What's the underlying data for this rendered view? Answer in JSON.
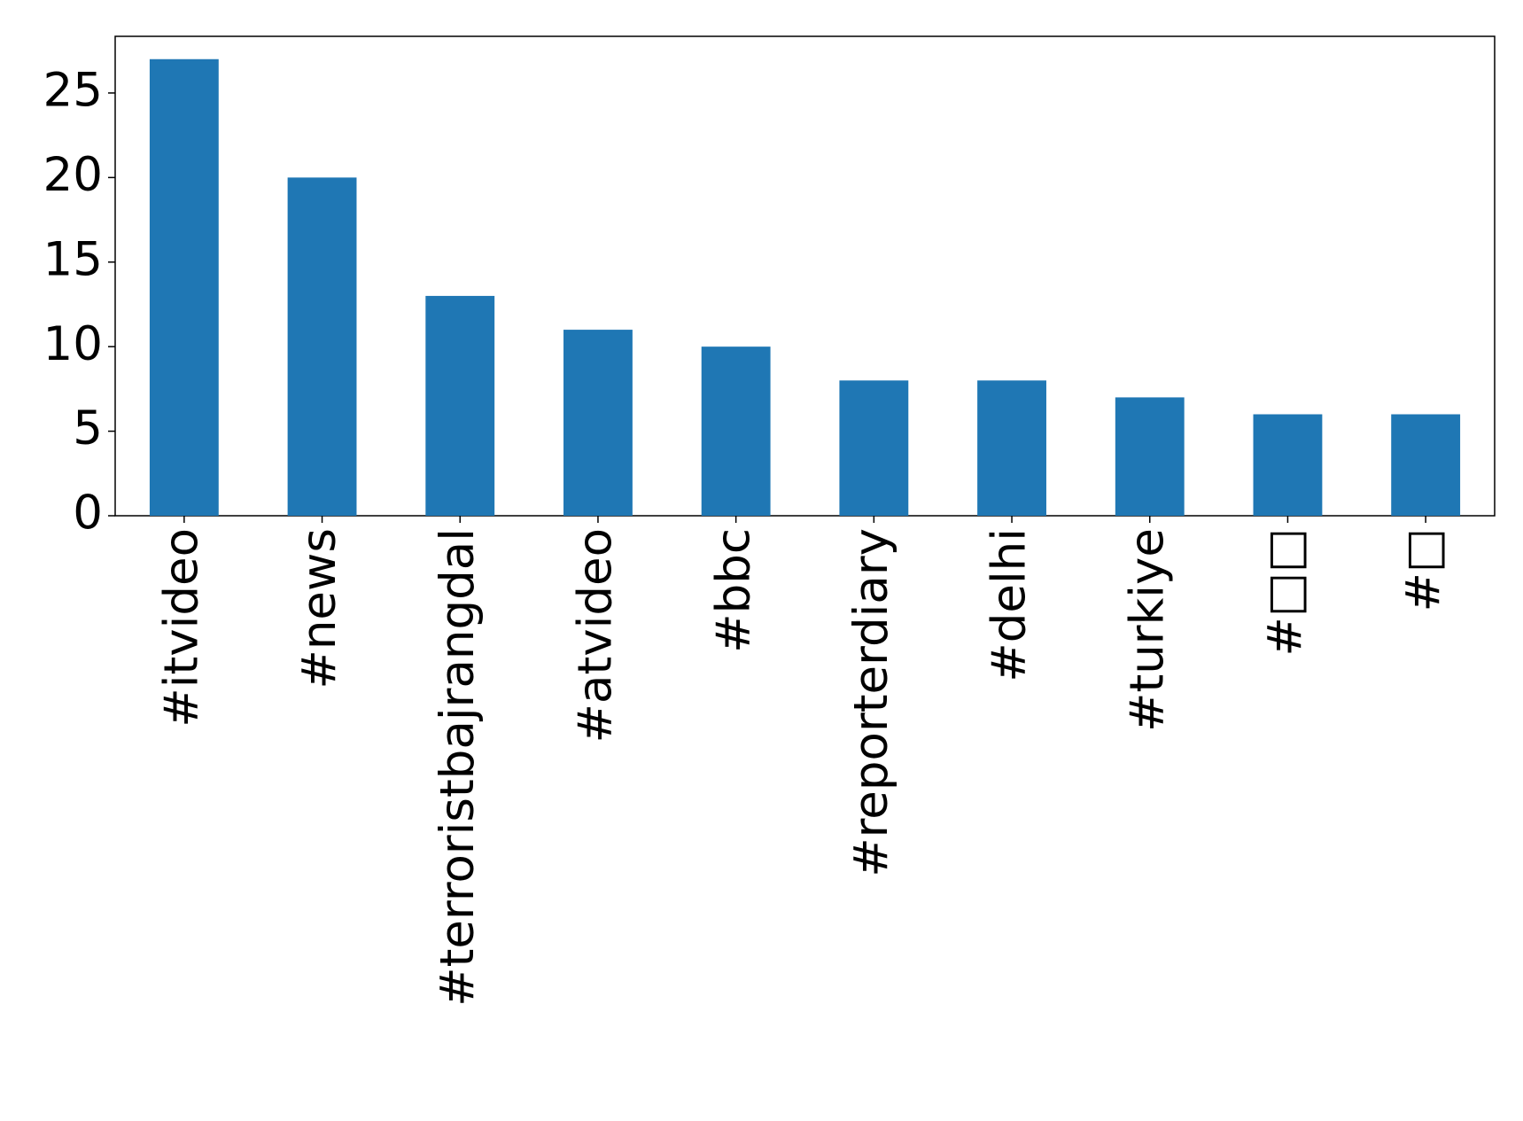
{
  "chart_data": {
    "type": "bar",
    "categories": [
      "#itvideo",
      "#news",
      "#terroristbajrangdal",
      "#atvideo",
      "#bbc",
      "#reporterdiary",
      "#delhi",
      "#turkiye",
      "#□□",
      "#□"
    ],
    "values": [
      27,
      20,
      13,
      11,
      10,
      8,
      8,
      7,
      6,
      6
    ],
    "color": "#1f77b4",
    "ylim": [
      0,
      28.35
    ],
    "yticks": [
      0,
      5,
      10,
      15,
      20,
      25
    ],
    "grid": false
  }
}
